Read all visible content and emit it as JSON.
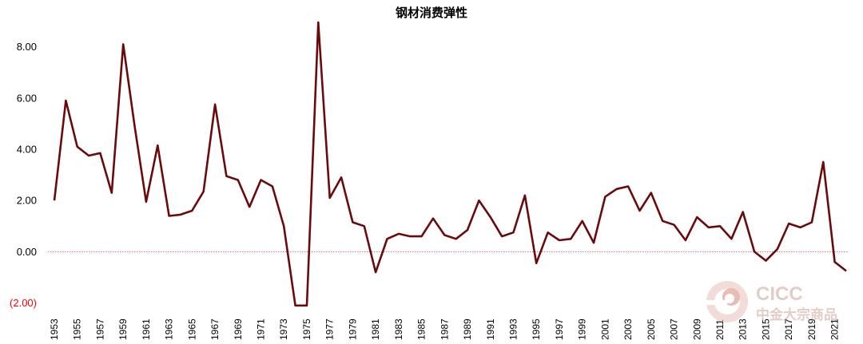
{
  "chart_data": {
    "type": "line",
    "title": "钢材消费弹性",
    "xlabel": "",
    "ylabel": "",
    "ylim": [
      -2,
      9
    ],
    "yticks": [
      -2,
      0,
      2,
      4,
      6,
      8
    ],
    "ytick_labels": [
      "(2.00)",
      "0.00",
      "2.00",
      "4.00",
      "6.00",
      "8.00"
    ],
    "grid": false,
    "zero_line": true,
    "colors": {
      "line": "#6b0a0a",
      "zero_line": "#c0504d",
      "negative_tick": "#ff0000",
      "tick": "#000000"
    },
    "x": [
      1953,
      1954,
      1955,
      1956,
      1957,
      1958,
      1959,
      1960,
      1961,
      1962,
      1963,
      1964,
      1965,
      1966,
      1967,
      1968,
      1969,
      1970,
      1971,
      1972,
      1973,
      1974,
      1975,
      1976,
      1977,
      1978,
      1979,
      1980,
      1981,
      1982,
      1983,
      1984,
      1985,
      1986,
      1987,
      1988,
      1989,
      1990,
      1991,
      1992,
      1993,
      1994,
      1995,
      1996,
      1997,
      1998,
      1999,
      2000,
      2001,
      2002,
      2003,
      2004,
      2005,
      2006,
      2007,
      2008,
      2009,
      2010,
      2011,
      2012,
      2013,
      2014,
      2015,
      2016,
      2017,
      2018,
      2019,
      2020,
      2021,
      2022
    ],
    "xtick_labels": [
      "1953",
      "1955",
      "1957",
      "1959",
      "1961",
      "1963",
      "1965",
      "1967",
      "1969",
      "1971",
      "1973",
      "1975",
      "1977",
      "1979",
      "1981",
      "1983",
      "1985",
      "1987",
      "1989",
      "1991",
      "1993",
      "1995",
      "1997",
      "1999",
      "2001",
      "2003",
      "2005",
      "2007",
      "2009",
      "2011",
      "2013",
      "2015",
      "2017",
      "2019",
      "2021"
    ],
    "series": [
      {
        "values": [
          2.0,
          5.9,
          4.1,
          3.75,
          3.85,
          2.3,
          8.1,
          4.9,
          1.95,
          4.15,
          1.4,
          1.45,
          1.6,
          2.35,
          5.75,
          2.95,
          2.8,
          1.75,
          2.8,
          2.55,
          1.0,
          -2.1,
          -2.1,
          8.95,
          2.1,
          2.9,
          1.15,
          1.0,
          -0.8,
          0.5,
          0.7,
          0.6,
          0.6,
          1.3,
          0.65,
          0.5,
          0.85,
          2.0,
          1.35,
          0.6,
          0.75,
          2.2,
          -0.45,
          0.75,
          0.45,
          0.5,
          1.2,
          0.35,
          2.15,
          2.45,
          2.55,
          1.6,
          2.3,
          1.2,
          1.05,
          0.45,
          1.35,
          0.95,
          1.0,
          0.5,
          1.55,
          0.0,
          -0.35,
          0.1,
          1.1,
          0.95,
          1.15,
          3.5,
          -0.4,
          -0.75
        ]
      }
    ]
  },
  "watermark": {
    "brand": "CICC",
    "subtitle": "中金大宗商品"
  }
}
